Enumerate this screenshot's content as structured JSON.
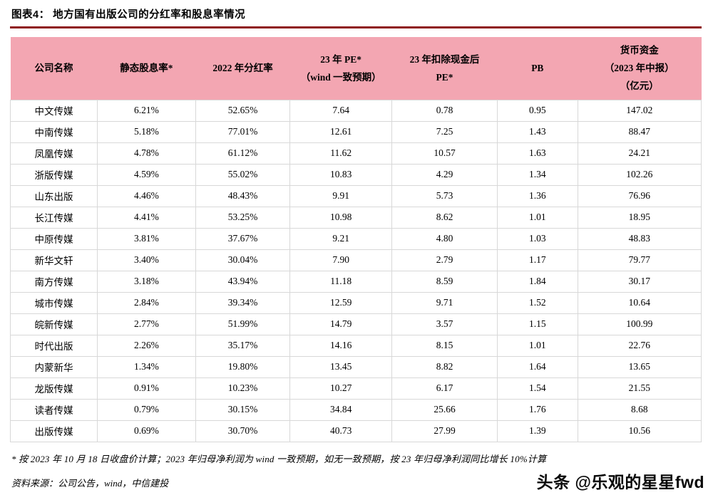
{
  "title": "图表4：  地方国有出版公司的分红率和股息率情况",
  "colors": {
    "header_bg": "#F3A6B2",
    "title_rule": "#8E1518",
    "cell_border": "#D8D8D8"
  },
  "table": {
    "headers": [
      {
        "lines": [
          "公司名称"
        ]
      },
      {
        "lines": [
          "静态股息率*"
        ]
      },
      {
        "lines": [
          "2022 年分红率"
        ]
      },
      {
        "lines": [
          "23 年 PE*",
          "（wind 一致预期）"
        ]
      },
      {
        "lines": [
          "23 年扣除现金后",
          "PE*"
        ]
      },
      {
        "lines": [
          "PB"
        ]
      },
      {
        "lines": [
          "货币资金",
          "（2023 年中报）",
          "（亿元）"
        ]
      }
    ],
    "rows": [
      [
        "中文传媒",
        "6.21%",
        "52.65%",
        "7.64",
        "0.78",
        "0.95",
        "147.02"
      ],
      [
        "中南传媒",
        "5.18%",
        "77.01%",
        "12.61",
        "7.25",
        "1.43",
        "88.47"
      ],
      [
        "凤凰传媒",
        "4.78%",
        "61.12%",
        "11.62",
        "10.57",
        "1.63",
        "24.21"
      ],
      [
        "浙版传媒",
        "4.59%",
        "55.02%",
        "10.83",
        "4.29",
        "1.34",
        "102.26"
      ],
      [
        "山东出版",
        "4.46%",
        "48.43%",
        "9.91",
        "5.73",
        "1.36",
        "76.96"
      ],
      [
        "长江传媒",
        "4.41%",
        "53.25%",
        "10.98",
        "8.62",
        "1.01",
        "18.95"
      ],
      [
        "中原传媒",
        "3.81%",
        "37.67%",
        "9.21",
        "4.80",
        "1.03",
        "48.83"
      ],
      [
        "新华文轩",
        "3.40%",
        "30.04%",
        "7.90",
        "2.79",
        "1.17",
        "79.77"
      ],
      [
        "南方传媒",
        "3.18%",
        "43.94%",
        "11.18",
        "8.59",
        "1.84",
        "30.17"
      ],
      [
        "城市传媒",
        "2.84%",
        "39.34%",
        "12.59",
        "9.71",
        "1.52",
        "10.64"
      ],
      [
        "皖新传媒",
        "2.77%",
        "51.99%",
        "14.79",
        "3.57",
        "1.15",
        "100.99"
      ],
      [
        "时代出版",
        "2.26%",
        "35.17%",
        "14.16",
        "8.15",
        "1.01",
        "22.76"
      ],
      [
        "内蒙新华",
        "1.34%",
        "19.80%",
        "13.45",
        "8.82",
        "1.64",
        "13.65"
      ],
      [
        "龙版传媒",
        "0.91%",
        "10.23%",
        "10.27",
        "6.17",
        "1.54",
        "21.55"
      ],
      [
        "读者传媒",
        "0.79%",
        "30.15%",
        "34.84",
        "25.66",
        "1.76",
        "8.68"
      ],
      [
        "出版传媒",
        "0.69%",
        "30.70%",
        "40.73",
        "27.99",
        "1.39",
        "10.56"
      ]
    ]
  },
  "footnotes": {
    "note1": "*  按 2023 年 10 月 18 日收盘价计算；2023 年归母净利润为 wind 一致预期，如无一致预期，按 23 年归母净利润同比增长 10%计算",
    "source": "资料来源：公司公告，wind，中信建投"
  },
  "watermark": "头条 @乐观的星星fwd"
}
